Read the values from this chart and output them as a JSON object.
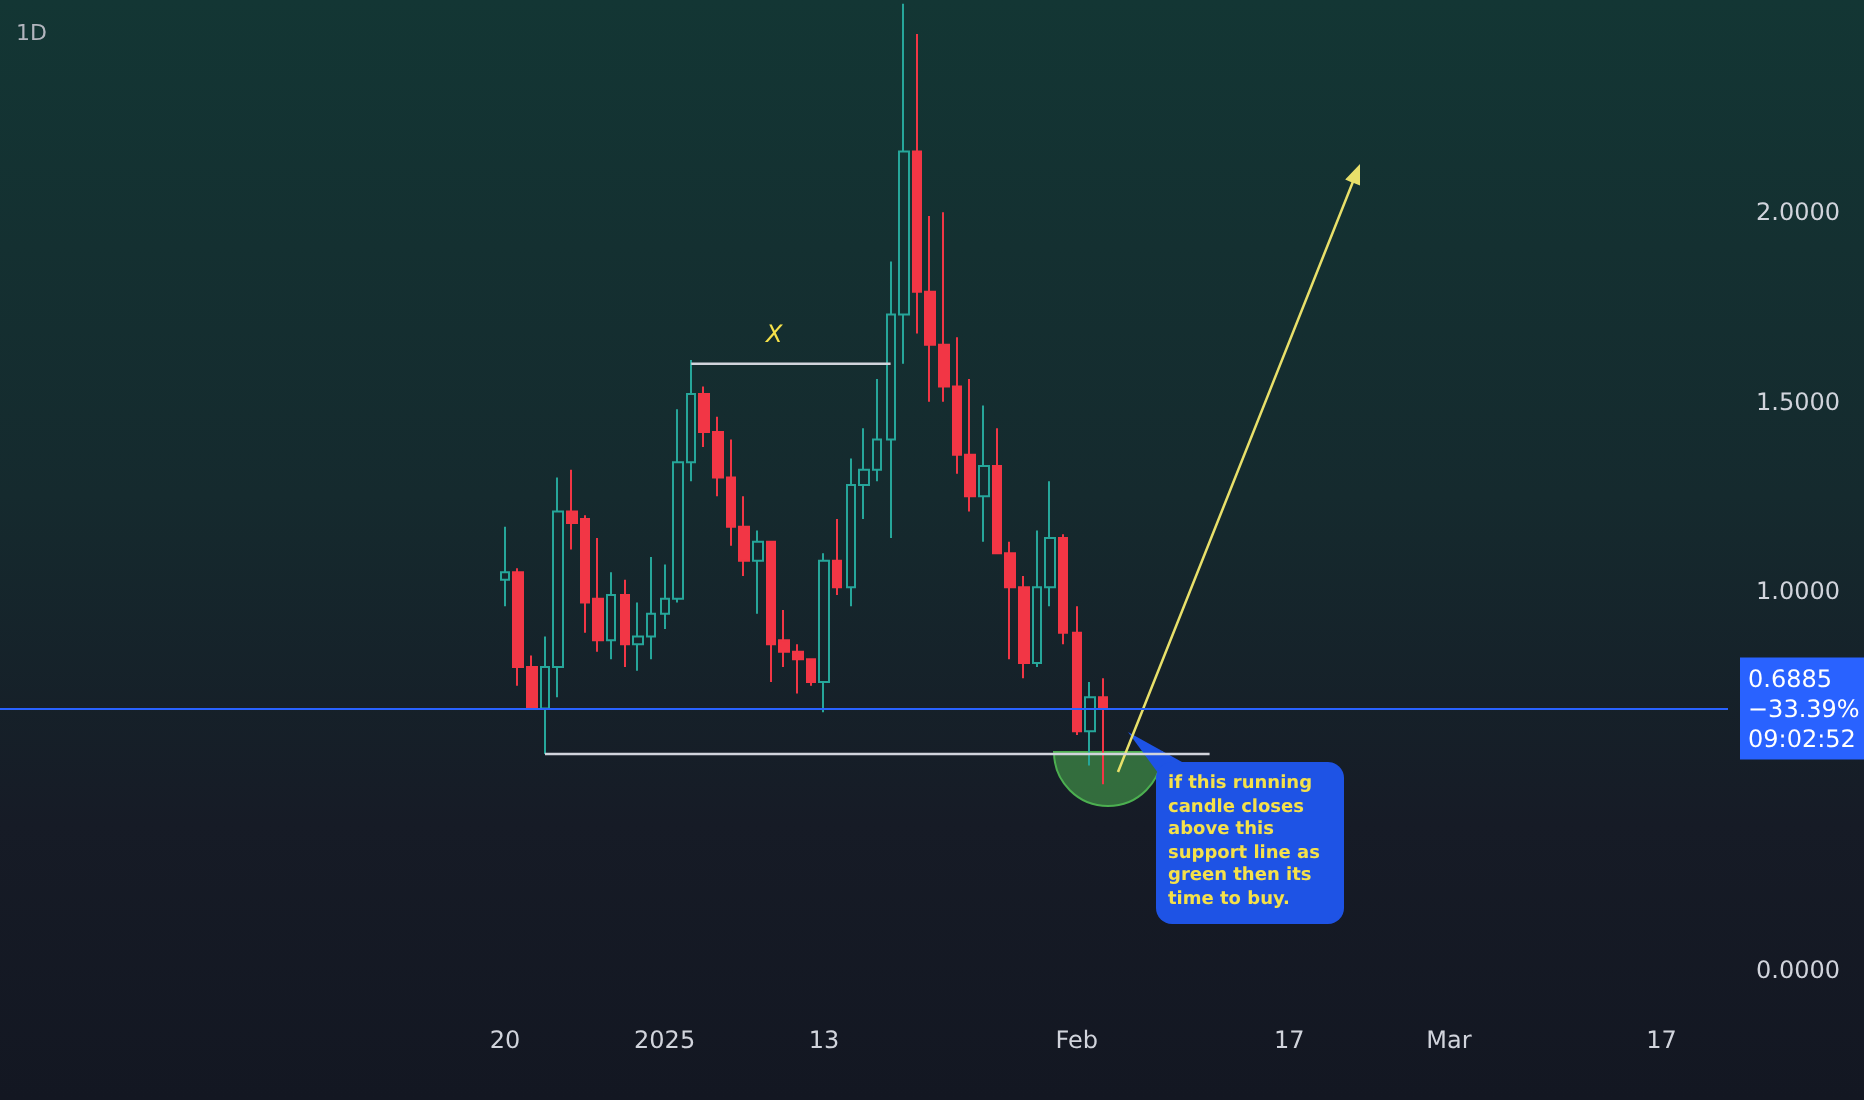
{
  "chart_data": {
    "type": "candlestick",
    "title": "1D",
    "x": [
      "2024-12-20",
      "2024-12-21",
      "2024-12-22",
      "2024-12-23",
      "2024-12-24",
      "2024-12-25",
      "2024-12-26",
      "2024-12-27",
      "2024-12-28",
      "2024-12-29",
      "2024-12-30",
      "2024-12-31",
      "2025-01-01",
      "2025-01-02",
      "2025-01-03",
      "2025-01-04",
      "2025-01-05",
      "2025-01-06",
      "2025-01-07",
      "2025-01-08",
      "2025-01-09",
      "2025-01-10",
      "2025-01-11",
      "2025-01-12",
      "2025-01-13",
      "2025-01-14",
      "2025-01-15",
      "2025-01-16",
      "2025-01-17",
      "2025-01-18",
      "2025-01-19",
      "2025-01-20",
      "2025-01-21",
      "2025-01-22",
      "2025-01-23",
      "2025-01-24",
      "2025-01-25",
      "2025-01-26",
      "2025-01-27",
      "2025-01-28",
      "2025-01-29",
      "2025-01-30",
      "2025-01-31",
      "2025-02-01",
      "2025-02-02",
      "2025-02-03"
    ],
    "ohlc": [
      [
        1.03,
        1.17,
        0.96,
        1.05
      ],
      [
        1.05,
        1.06,
        0.75,
        0.8
      ],
      [
        0.8,
        0.83,
        0.69,
        0.69
      ],
      [
        0.69,
        0.88,
        0.57,
        0.8
      ],
      [
        0.8,
        1.3,
        0.72,
        1.21
      ],
      [
        1.21,
        1.32,
        1.11,
        1.18
      ],
      [
        1.19,
        1.2,
        0.89,
        0.97
      ],
      [
        0.98,
        1.14,
        0.84,
        0.87
      ],
      [
        0.87,
        1.05,
        0.82,
        0.99
      ],
      [
        0.99,
        1.03,
        0.8,
        0.86
      ],
      [
        0.86,
        0.97,
        0.79,
        0.88
      ],
      [
        0.88,
        1.09,
        0.82,
        0.94
      ],
      [
        0.94,
        1.07,
        0.9,
        0.98
      ],
      [
        0.98,
        1.48,
        0.97,
        1.34
      ],
      [
        1.34,
        1.61,
        1.29,
        1.52
      ],
      [
        1.52,
        1.54,
        1.38,
        1.42
      ],
      [
        1.42,
        1.46,
        1.25,
        1.3
      ],
      [
        1.3,
        1.4,
        1.12,
        1.17
      ],
      [
        1.17,
        1.25,
        1.04,
        1.08
      ],
      [
        1.08,
        1.16,
        0.94,
        1.13
      ],
      [
        1.13,
        1.13,
        0.76,
        0.86
      ],
      [
        0.87,
        0.95,
        0.8,
        0.84
      ],
      [
        0.84,
        0.86,
        0.73,
        0.82
      ],
      [
        0.82,
        0.82,
        0.75,
        0.76
      ],
      [
        0.76,
        1.1,
        0.68,
        1.08
      ],
      [
        1.08,
        1.19,
        0.99,
        1.01
      ],
      [
        1.01,
        1.35,
        0.96,
        1.28
      ],
      [
        1.28,
        1.43,
        1.19,
        1.32
      ],
      [
        1.32,
        1.56,
        1.29,
        1.4
      ],
      [
        1.4,
        1.87,
        1.14,
        1.73
      ],
      [
        1.73,
        2.55,
        1.6,
        2.16
      ],
      [
        2.16,
        2.47,
        1.68,
        1.79
      ],
      [
        1.79,
        1.99,
        1.5,
        1.65
      ],
      [
        1.65,
        2.0,
        1.5,
        1.54
      ],
      [
        1.54,
        1.67,
        1.31,
        1.36
      ],
      [
        1.36,
        1.56,
        1.21,
        1.25
      ],
      [
        1.25,
        1.49,
        1.13,
        1.33
      ],
      [
        1.33,
        1.43,
        1.1,
        1.1
      ],
      [
        1.1,
        1.13,
        0.82,
        1.01
      ],
      [
        1.01,
        1.04,
        0.77,
        0.81
      ],
      [
        0.81,
        1.16,
        0.8,
        1.01
      ],
      [
        1.01,
        1.29,
        0.96,
        1.14
      ],
      [
        1.14,
        1.15,
        0.86,
        0.89
      ],
      [
        0.89,
        0.96,
        0.62,
        0.63
      ],
      [
        0.63,
        0.76,
        0.54,
        0.72
      ],
      [
        0.72,
        0.77,
        0.49,
        0.6885
      ]
    ],
    "series": [
      {
        "type": "line",
        "x": [
          "2024-12-23",
          "2025-02-11"
        ],
        "values": [
          0.57,
          0.57
        ],
        "color": "#d1d4dc"
      },
      {
        "type": "line",
        "x": [
          "2025-01-03",
          "2025-01-18"
        ],
        "values": [
          1.6,
          1.6
        ],
        "color": "#d1d4dc"
      }
    ],
    "marker": "none",
    "line_style": "solid",
    "xlim": [
      "2024-11-12",
      "2025-03-22"
    ],
    "xticks": [
      {
        "value": "2024-12-20",
        "label": "20"
      },
      {
        "value": "2025-01-01",
        "label": "2025"
      },
      {
        "value": "2025-01-13",
        "label": "13"
      },
      {
        "value": "2025-02-01",
        "label": "Feb"
      },
      {
        "value": "2025-02-17",
        "label": "17"
      },
      {
        "value": "2025-03-01",
        "label": "Mar"
      },
      {
        "value": "2025-03-17",
        "label": "17"
      }
    ],
    "ylim": [
      0,
      2.56
    ],
    "yticks": [
      {
        "value": 0,
        "label": "0.0000"
      },
      {
        "value": 1,
        "label": "1.0000"
      },
      {
        "value": 1.5,
        "label": "1.5000"
      },
      {
        "value": 2,
        "label": "2.0000"
      }
    ],
    "ref_lines": [
      {
        "axis": "y",
        "value": 0.6885,
        "label": "0.6885\n−33.39%\n09:02:52",
        "color": "#2962ff"
      }
    ],
    "annotations": [
      "X",
      "if this running candle closes above this support line as green then its time to buy."
    ],
    "grid": false
  }
}
